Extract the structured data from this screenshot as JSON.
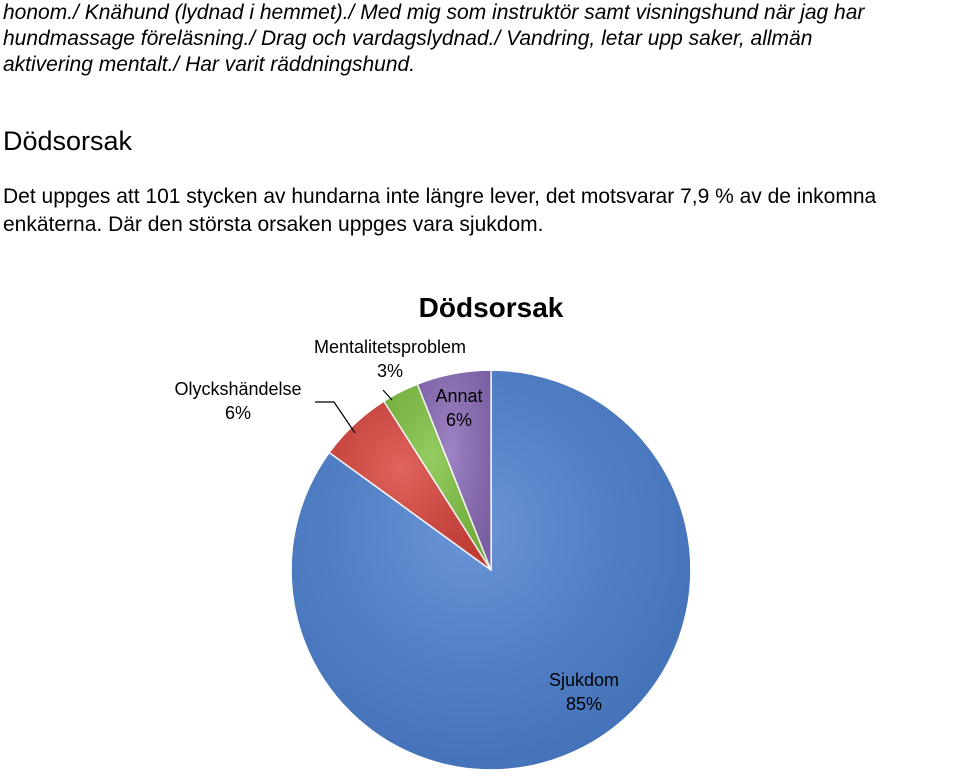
{
  "intro_lines": [
    "honom./ Knähund (lydnad i hemmet)./ Med mig som instruktör samt visningshund när jag har",
    "hundmassage föreläsning./ Drag och vardagslydnad./ Vandring, letar upp saker, allmän",
    "aktivering mentalt./ Har varit räddningshund."
  ],
  "section_heading": "Dödsorsak",
  "paragraph_lines": [
    "Det uppges att 101 stycken av hundarna inte längre lever, det motsvarar 7,9 % av de inkomna",
    "enkäterna. Där den största orsaken uppges vara sjukdom."
  ],
  "chart_data": {
    "type": "pie",
    "title": "Dödsorsak",
    "slices": [
      {
        "label": "Sjukdom",
        "value": 85,
        "display": "85%",
        "color": "#4a7fd0"
      },
      {
        "label": "Olyckshändelse",
        "value": 6,
        "display": "6%",
        "color": "#d9433b"
      },
      {
        "label": "Mentalitetsproblem",
        "value": 3,
        "display": "3%",
        "color": "#7fc240"
      },
      {
        "label": "Annat",
        "value": 6,
        "display": "6%",
        "color": "#8a6ab8"
      }
    ]
  }
}
